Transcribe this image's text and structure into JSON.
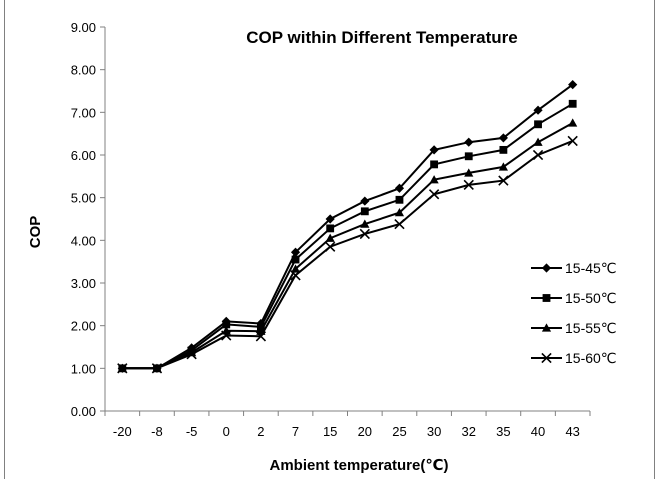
{
  "chart_data": {
    "type": "line",
    "title": "COP within Different Temperature",
    "xlabel": "Ambient temperature(℃)",
    "ylabel": "COP",
    "categories": [
      "-20",
      "-8",
      "-5",
      "0",
      "2",
      "7",
      "15",
      "20",
      "25",
      "30",
      "32",
      "35",
      "40",
      "43"
    ],
    "ylim": [
      0,
      9
    ],
    "yticks": [
      "0.00",
      "1.00",
      "2.00",
      "3.00",
      "4.00",
      "5.00",
      "6.00",
      "7.00",
      "8.00",
      "9.00"
    ],
    "grid": false,
    "legend_position": "right",
    "series": [
      {
        "name": "15-45℃",
        "marker": "diamond",
        "values": [
          1.0,
          1.0,
          1.48,
          2.1,
          2.05,
          3.72,
          4.5,
          4.92,
          5.22,
          6.12,
          6.3,
          6.4,
          7.05,
          7.65
        ]
      },
      {
        "name": "15-50℃",
        "marker": "square",
        "values": [
          1.0,
          1.0,
          1.42,
          2.03,
          1.97,
          3.55,
          4.28,
          4.68,
          4.95,
          5.78,
          5.97,
          6.12,
          6.72,
          7.2
        ]
      },
      {
        "name": "15-55℃",
        "marker": "triangle",
        "values": [
          1.0,
          1.0,
          1.37,
          1.88,
          1.87,
          3.33,
          4.05,
          4.38,
          4.65,
          5.42,
          5.58,
          5.72,
          6.3,
          6.75
        ]
      },
      {
        "name": "15-60℃",
        "marker": "x",
        "values": [
          1.0,
          1.0,
          1.33,
          1.77,
          1.75,
          3.18,
          3.85,
          4.15,
          4.38,
          5.08,
          5.3,
          5.4,
          6.0,
          6.33
        ]
      }
    ]
  }
}
